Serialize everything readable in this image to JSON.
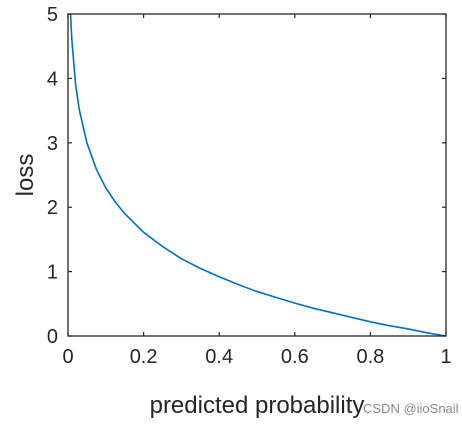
{
  "chart_data": {
    "type": "line",
    "title": "",
    "xlabel": "predicted probability",
    "ylabel": "loss",
    "xlim": [
      0,
      1
    ],
    "ylim": [
      0,
      5
    ],
    "x_ticks": [
      "0",
      "0.2",
      "0.4",
      "0.6",
      "0.8",
      "1"
    ],
    "y_ticks": [
      "0",
      "1",
      "2",
      "3",
      "4",
      "5"
    ],
    "grid": false,
    "series": [
      {
        "color": "#0072bd",
        "x": [
          0.0067,
          0.01,
          0.02,
          0.03,
          0.05,
          0.075,
          0.1,
          0.125,
          0.15,
          0.2,
          0.25,
          0.3,
          0.35,
          0.4,
          0.45,
          0.5,
          0.55,
          0.6,
          0.65,
          0.7,
          0.75,
          0.8,
          0.85,
          0.9,
          0.95,
          1.0
        ],
        "y": [
          5.0,
          4.61,
          3.91,
          3.51,
          3.0,
          2.59,
          2.3,
          2.08,
          1.9,
          1.61,
          1.39,
          1.2,
          1.05,
          0.92,
          0.8,
          0.69,
          0.6,
          0.51,
          0.43,
          0.36,
          0.29,
          0.22,
          0.16,
          0.11,
          0.05,
          0.0
        ]
      }
    ]
  },
  "watermark": "CSDN @iioSnail",
  "colors": {
    "axis": "#262626",
    "line": "#0072bd",
    "background": "#ffffff"
  }
}
